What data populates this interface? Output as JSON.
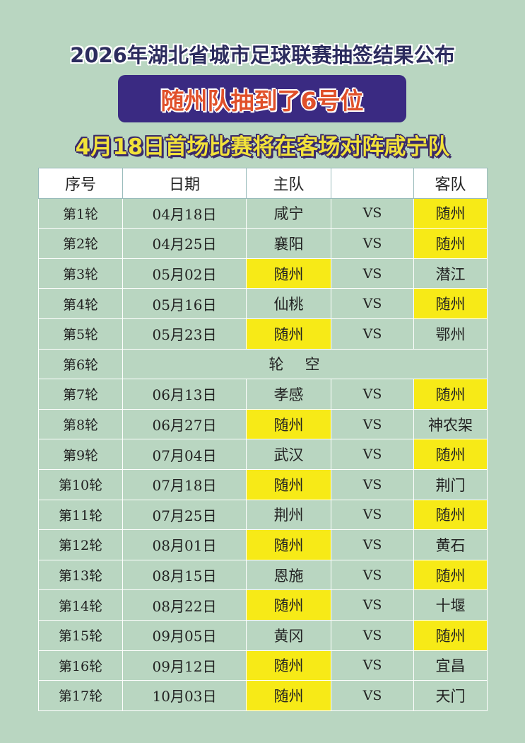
{
  "title": "2026年湖北省城市足球联赛抽签结果公布",
  "banner": "随州队抽到了6号位",
  "subtitle": "4月18日首场比赛将在客场对阵咸宁队",
  "colors": {
    "background": "#b9d6c1",
    "banner": "#3a2a82",
    "highlight": "#f7ea17",
    "subtitle": "#f2e23a"
  },
  "highlight_team": "随州",
  "table": {
    "headers": [
      "序号",
      "日期",
      "主队",
      "",
      "客队"
    ],
    "rows": [
      {
        "round": "第1轮",
        "date": "04月18日",
        "home": "咸宁",
        "vs": "VS",
        "away": "随州"
      },
      {
        "round": "第2轮",
        "date": "04月25日",
        "home": "襄阳",
        "vs": "VS",
        "away": "随州"
      },
      {
        "round": "第3轮",
        "date": "05月02日",
        "home": "随州",
        "vs": "VS",
        "away": "潜江"
      },
      {
        "round": "第4轮",
        "date": "05月16日",
        "home": "仙桃",
        "vs": "VS",
        "away": "随州"
      },
      {
        "round": "第5轮",
        "date": "05月23日",
        "home": "随州",
        "vs": "VS",
        "away": "鄂州"
      },
      {
        "round": "第6轮",
        "bye": "轮空"
      },
      {
        "round": "第7轮",
        "date": "06月13日",
        "home": "孝感",
        "vs": "VS",
        "away": "随州"
      },
      {
        "round": "第8轮",
        "date": "06月27日",
        "home": "随州",
        "vs": "VS",
        "away": "神农架"
      },
      {
        "round": "第9轮",
        "date": "07月04日",
        "home": "武汉",
        "vs": "VS",
        "away": "随州"
      },
      {
        "round": "第10轮",
        "date": "07月18日",
        "home": "随州",
        "vs": "VS",
        "away": "荆门"
      },
      {
        "round": "第11轮",
        "date": "07月25日",
        "home": "荆州",
        "vs": "VS",
        "away": "随州"
      },
      {
        "round": "第12轮",
        "date": "08月01日",
        "home": "随州",
        "vs": "VS",
        "away": "黄石"
      },
      {
        "round": "第13轮",
        "date": "08月15日",
        "home": "恩施",
        "vs": "VS",
        "away": "随州"
      },
      {
        "round": "第14轮",
        "date": "08月22日",
        "home": "随州",
        "vs": "VS",
        "away": "十堰"
      },
      {
        "round": "第15轮",
        "date": "09月05日",
        "home": "黄冈",
        "vs": "VS",
        "away": "随州"
      },
      {
        "round": "第16轮",
        "date": "09月12日",
        "home": "随州",
        "vs": "VS",
        "away": "宜昌"
      },
      {
        "round": "第17轮",
        "date": "10月03日",
        "home": "随州",
        "vs": "VS",
        "away": "天门"
      }
    ]
  }
}
